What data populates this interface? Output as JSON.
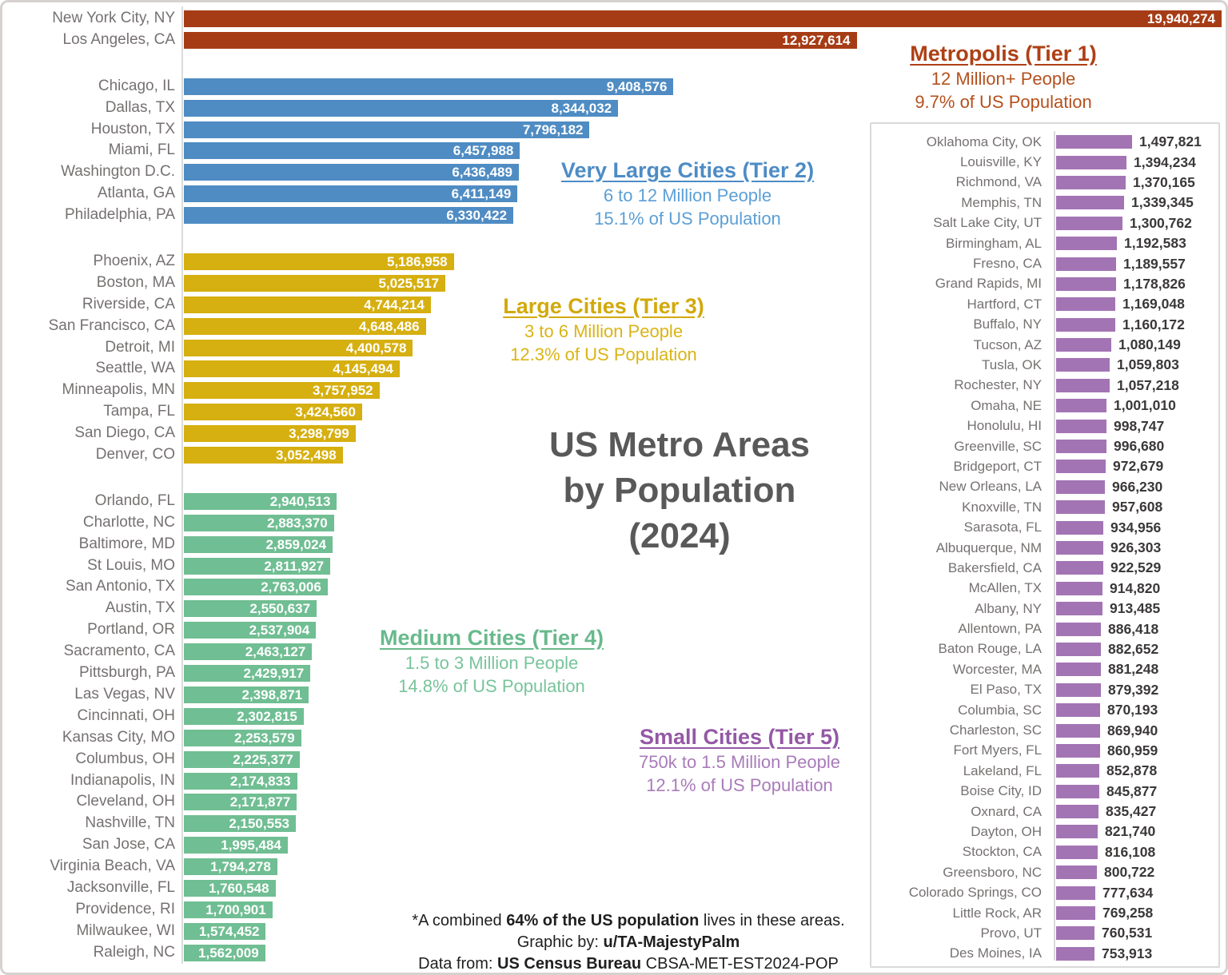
{
  "title": {
    "line1": "US Metro Areas",
    "line2": "by Population",
    "line3": "(2024)"
  },
  "footer": {
    "line1_pre": "*A combined ",
    "line1_bold": "64% of the US population",
    "line1_post": " lives in these areas.",
    "line2_pre": "Graphic by: ",
    "line2_bold": "u/TA-MajestyPalm",
    "line3_pre": "Data from: ",
    "line3_bold": "US Census Bureau",
    "line3_post": " CBSA-MET-EST2024-POP"
  },
  "colors": {
    "title": "#595959",
    "city_label": "#767171",
    "bar_value_main": "#FFFFFF",
    "bar_value_side": "#3B3838",
    "axis_line": "#DBDBDB",
    "panel_border": "#D9D9D9",
    "frame_border": "#D6D2CF",
    "footer_text": "#1F1F1F"
  },
  "chart_data": {
    "type": "bar",
    "orientation": "horizontal",
    "title": "US Metro Areas by Population (2024)",
    "grid": false,
    "main_axis_max": 19940274,
    "side_axis_max": 1497821,
    "tiers": [
      {
        "tier": 1,
        "name": "Metropolis (Tier 1)",
        "people_range": "12 Million+ People",
        "us_population_share": "9.7% of US Population",
        "panel": "main",
        "bar_color": "#A63C16",
        "heading_color": "#AE4015",
        "sub_color": "#B4511E",
        "cities": [
          {
            "city": "New York City, NY",
            "population": 19940274
          },
          {
            "city": "Los Angeles, CA",
            "population": 12927614
          }
        ]
      },
      {
        "tier": 2,
        "name": "Very Large Cities (Tier 2)",
        "people_range": "6 to 12 Million People",
        "us_population_share": "15.1% of US Population",
        "panel": "main",
        "bar_color": "#4F8CC3",
        "heading_color": "#4D8CC5",
        "sub_color": "#5C9FD6",
        "cities": [
          {
            "city": "Chicago, IL",
            "population": 9408576
          },
          {
            "city": "Dallas, TX",
            "population": 8344032
          },
          {
            "city": "Houston, TX",
            "population": 7796182
          },
          {
            "city": "Miami, FL",
            "population": 6457988
          },
          {
            "city": "Washington D.C.",
            "population": 6436489
          },
          {
            "city": "Atlanta, GA",
            "population": 6411149
          },
          {
            "city": "Philadelphia, PA",
            "population": 6330422
          }
        ]
      },
      {
        "tier": 3,
        "name": "Large Cities (Tier 3)",
        "people_range": "3 to 6 Million People",
        "us_population_share": "12.3% of US Population",
        "panel": "main",
        "bar_color": "#D6AF10",
        "heading_color": "#D2A90B",
        "sub_color": "#DAB415",
        "cities": [
          {
            "city": "Phoenix, AZ",
            "population": 5186958
          },
          {
            "city": "Boston, MA",
            "population": 5025517
          },
          {
            "city": "Riverside, CA",
            "population": 4744214
          },
          {
            "city": "San Francisco, CA",
            "population": 4648486
          },
          {
            "city": "Detroit, MI",
            "population": 4400578
          },
          {
            "city": "Seattle, WA",
            "population": 4145494
          },
          {
            "city": "Minneapolis, MN",
            "population": 3757952
          },
          {
            "city": "Tampa, FL",
            "population": 3424560
          },
          {
            "city": "San Diego, CA",
            "population": 3298799
          },
          {
            "city": "Denver, CO",
            "population": 3052498
          }
        ]
      },
      {
        "tier": 4,
        "name": "Medium Cities (Tier 4)",
        "people_range": "1.5 to 3 Million People",
        "us_population_share": "14.8% of US Population",
        "panel": "main",
        "bar_color": "#70BE93",
        "heading_color": "#68B98C",
        "sub_color": "#78C49B",
        "cities": [
          {
            "city": "Orlando, FL",
            "population": 2940513
          },
          {
            "city": "Charlotte, NC",
            "population": 2883370
          },
          {
            "city": "Baltimore, MD",
            "population": 2859024
          },
          {
            "city": "St Louis, MO",
            "population": 2811927
          },
          {
            "city": "San Antonio, TX",
            "population": 2763006
          },
          {
            "city": "Austin, TX",
            "population": 2550637
          },
          {
            "city": "Portland, OR",
            "population": 2537904
          },
          {
            "city": "Sacramento, CA",
            "population": 2463127
          },
          {
            "city": "Pittsburgh, PA",
            "population": 2429917
          },
          {
            "city": "Las Vegas, NV",
            "population": 2398871
          },
          {
            "city": "Cincinnati, OH",
            "population": 2302815
          },
          {
            "city": "Kansas City, MO",
            "population": 2253579
          },
          {
            "city": "Columbus, OH",
            "population": 2225377
          },
          {
            "city": "Indianapolis, IN",
            "population": 2174833
          },
          {
            "city": "Cleveland, OH",
            "population": 2171877
          },
          {
            "city": "Nashville, TN",
            "population": 2150553
          },
          {
            "city": "San Jose, CA",
            "population": 1995484
          },
          {
            "city": "Virginia Beach, VA",
            "population": 1794278
          },
          {
            "city": "Jacksonville, FL",
            "population": 1760548
          },
          {
            "city": "Providence, RI",
            "population": 1700901
          },
          {
            "city": "Milwaukee, WI",
            "population": 1574452
          },
          {
            "city": "Raleigh, NC",
            "population": 1562009
          }
        ]
      },
      {
        "tier": 5,
        "name": "Small Cities (Tier 5)",
        "people_range": "750k to 1.5 Million People",
        "us_population_share": "12.1% of US Population",
        "panel": "side",
        "bar_color": "#A374B4",
        "heading_color": "#9458A6",
        "sub_color": "#A97BBA",
        "cities": [
          {
            "city": "Oklahoma City, OK",
            "population": 1497821
          },
          {
            "city": "Louisville, KY",
            "population": 1394234
          },
          {
            "city": "Richmond, VA",
            "population": 1370165
          },
          {
            "city": "Memphis, TN",
            "population": 1339345
          },
          {
            "city": "Salt Lake City, UT",
            "population": 1300762
          },
          {
            "city": "Birmingham, AL",
            "population": 1192583
          },
          {
            "city": "Fresno, CA",
            "population": 1189557
          },
          {
            "city": "Grand Rapids, MI",
            "population": 1178826
          },
          {
            "city": "Hartford, CT",
            "population": 1169048
          },
          {
            "city": "Buffalo, NY",
            "population": 1160172
          },
          {
            "city": "Tucson, AZ",
            "population": 1080149
          },
          {
            "city": "Tusla, OK",
            "population": 1059803
          },
          {
            "city": "Rochester, NY",
            "population": 1057218
          },
          {
            "city": "Omaha, NE",
            "population": 1001010
          },
          {
            "city": "Honolulu, HI",
            "population": 998747
          },
          {
            "city": "Greenville, SC",
            "population": 996680
          },
          {
            "city": "Bridgeport, CT",
            "population": 972679
          },
          {
            "city": "New Orleans, LA",
            "population": 966230
          },
          {
            "city": "Knoxville, TN",
            "population": 957608
          },
          {
            "city": "Sarasota, FL",
            "population": 934956
          },
          {
            "city": "Albuquerque, NM",
            "population": 926303
          },
          {
            "city": "Bakersfield, CA",
            "population": 922529
          },
          {
            "city": "McAllen, TX",
            "population": 914820
          },
          {
            "city": "Albany, NY",
            "population": 913485
          },
          {
            "city": "Allentown, PA",
            "population": 886418
          },
          {
            "city": "Baton Rouge, LA",
            "population": 882652
          },
          {
            "city": "Worcester, MA",
            "population": 881248
          },
          {
            "city": "El Paso, TX",
            "population": 879392
          },
          {
            "city": "Columbia, SC",
            "population": 870193
          },
          {
            "city": "Charleston, SC",
            "population": 869940
          },
          {
            "city": "Fort Myers, FL",
            "population": 860959
          },
          {
            "city": "Lakeland, FL",
            "population": 852878
          },
          {
            "city": "Boise City, ID",
            "population": 845877
          },
          {
            "city": "Oxnard, CA",
            "population": 835427
          },
          {
            "city": "Dayton, OH",
            "population": 821740
          },
          {
            "city": "Stockton, CA",
            "population": 816108
          },
          {
            "city": "Greensboro, NC",
            "population": 800722
          },
          {
            "city": "Colorado Springs, CO",
            "population": 777634
          },
          {
            "city": "Little Rock, AR",
            "population": 769258
          },
          {
            "city": "Provo, UT",
            "population": 760531
          },
          {
            "city": "Des Moines, IA",
            "population": 753913
          }
        ]
      }
    ]
  }
}
